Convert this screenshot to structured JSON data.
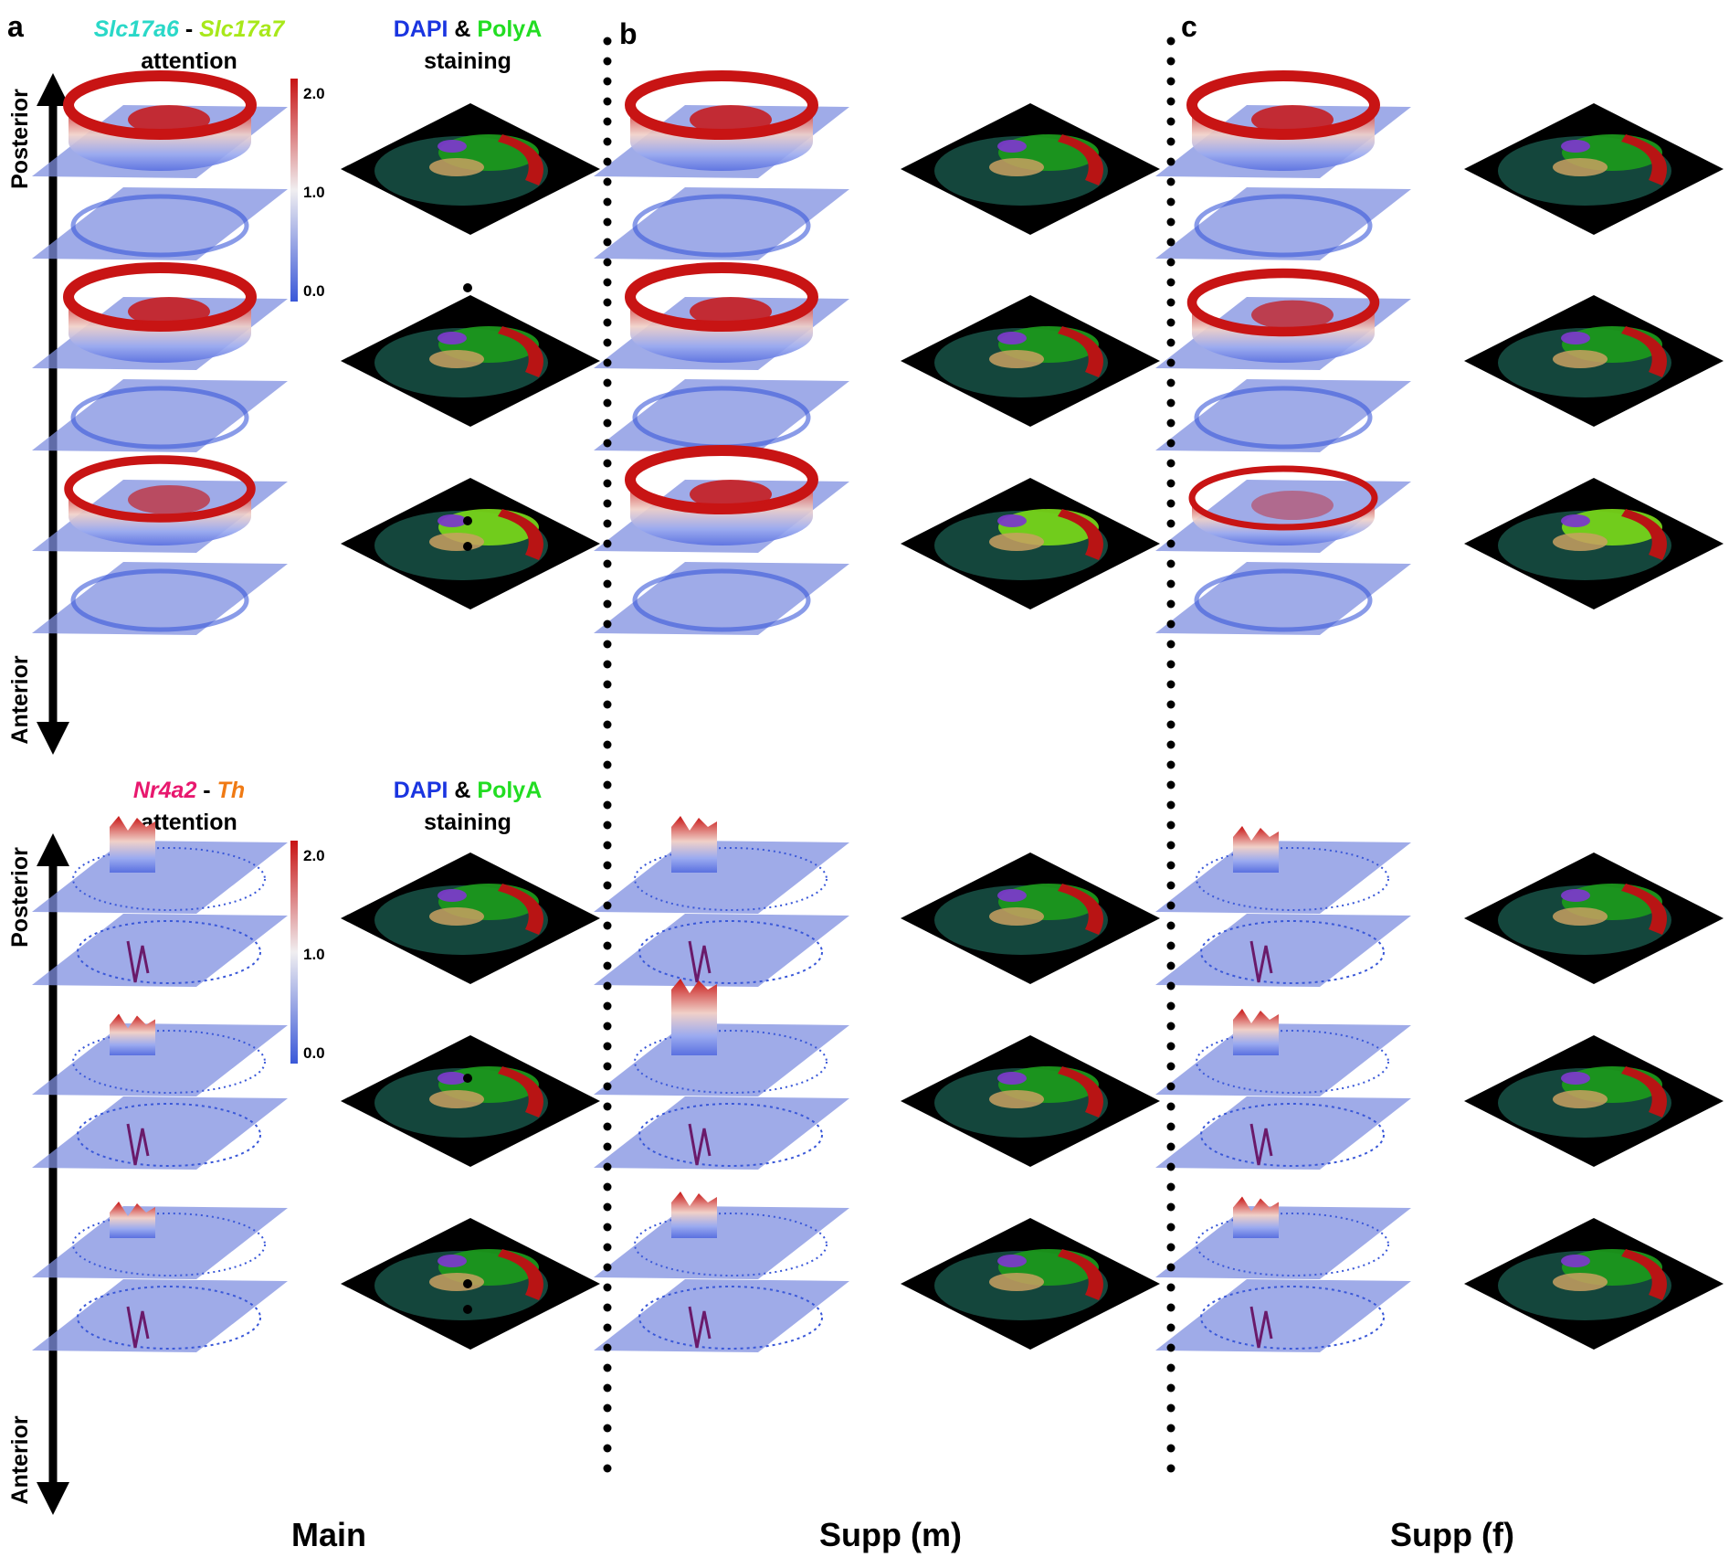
{
  "panel_labels": [
    "a",
    "b",
    "c"
  ],
  "gene_pair_1": {
    "gene_a": "Slc17a6",
    "separator": " - ",
    "gene_b": "Slc17a7",
    "subtitle": "attention"
  },
  "gene_pair_2": {
    "gene_a": "Nr4a2",
    "separator": " - ",
    "gene_b": "Th",
    "subtitle": "attention"
  },
  "staining": {
    "dapi": "DAPI",
    "amp": " & ",
    "polya": "PolyA",
    "subtitle": "staining"
  },
  "axis": {
    "top": "Posterior",
    "bottom": "Anterior"
  },
  "colorbar": {
    "ticks": [
      "2.0",
      "1.0",
      "0.0"
    ],
    "range": [
      0,
      2.0
    ]
  },
  "column_titles": [
    "Main",
    "Supp (m)",
    "Supp (f)"
  ],
  "colors": {
    "slc17a6": "#2ad8c8",
    "slc17a7": "#a8e81a",
    "nr4a2": "#e8186e",
    "th": "#f07a14",
    "dapi": "#1a35e0",
    "polya": "#22dd22",
    "plane": "#7f8fe0",
    "attention_high": "#c81414",
    "attention_mid": "#f0e6e6",
    "attention_low": "#3a58d8",
    "region_green": "#1c9a1c",
    "region_red": "#b81414",
    "region_purple": "#7a3ac8",
    "region_tan": "#c8a060",
    "region_lime": "#7ad81a"
  }
}
